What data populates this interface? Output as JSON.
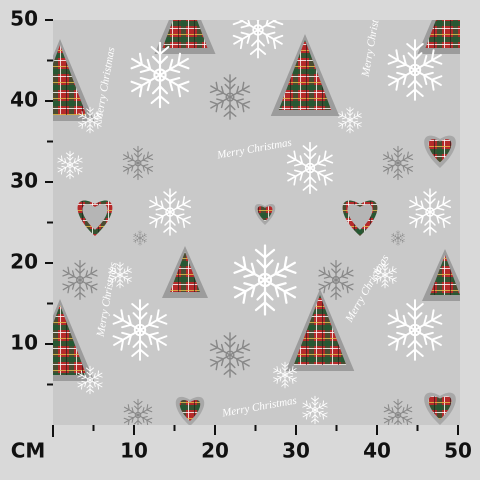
{
  "ruler": {
    "unit": "CM",
    "lim": [
      0,
      50
    ],
    "x_ticks": [
      10,
      20,
      30,
      40,
      50
    ],
    "y_ticks": [
      10,
      20,
      30,
      40,
      50
    ],
    "minor_ticks": [
      5,
      15,
      25,
      35,
      45
    ]
  },
  "pattern_text": "Merry Christmas"
}
